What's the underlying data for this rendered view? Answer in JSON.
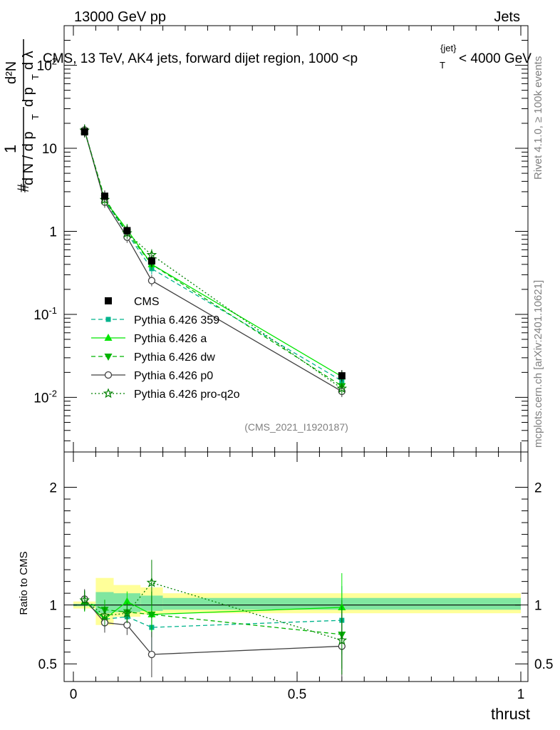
{
  "header": {
    "left": "13000 GeV pp",
    "right": "Jets"
  },
  "side_labels": {
    "rivet": "Rivet 4.1.0, ≥ 100k events",
    "mcplots": "mcplots.cern.ch [arXiv:2401.10621]"
  },
  "analysis_id": "(CMS_2021_I1920187)",
  "colors": {
    "cms": "#000000",
    "p359": "#00b38c",
    "a": "#00e600",
    "dw": "#00b300",
    "p0": "#404040",
    "proq2o": "#008000",
    "band_outer": "#ffff99",
    "band_inner": "#80e6a0"
  },
  "chart_data": [
    {
      "type": "line",
      "panel": "main",
      "title": "CMS, 13 TeV, AK4 jets, forward dijet region, 1000 <p_T^{jet}< 4000 GeV",
      "ylabel": "1/(dN/dpT) d²N/(dpT dλ)",
      "yscale": "log",
      "ylim": [
        0.0022,
        300
      ],
      "xlim": [
        -0.02,
        1.0
      ],
      "y_tick_labels": [
        "10^-2",
        "10^-1",
        "1",
        "10",
        "10^2"
      ],
      "x": [
        0.025,
        0.07,
        0.12,
        0.175,
        0.6
      ],
      "series": [
        {
          "key": "cms",
          "name": "CMS",
          "values": [
            15.8,
            2.65,
            1.02,
            0.44,
            0.0182
          ]
        },
        {
          "key": "p359",
          "name": "Pythia 6.426 359",
          "values": [
            16.5,
            2.35,
            0.94,
            0.355,
            0.0158
          ]
        },
        {
          "key": "a",
          "name": "Pythia 6.426 a",
          "values": [
            16.2,
            2.35,
            1.05,
            0.4,
            0.0178
          ]
        },
        {
          "key": "dw",
          "name": "Pythia 6.426 dw",
          "values": [
            16.3,
            2.5,
            0.97,
            0.4,
            0.0137
          ]
        },
        {
          "key": "p0",
          "name": "Pythia 6.426 p0",
          "values": [
            16.6,
            2.25,
            0.85,
            0.255,
            0.0118
          ]
        },
        {
          "key": "proq2o",
          "name": "Pythia 6.426 pro-q2o",
          "values": [
            16.4,
            2.4,
            0.95,
            0.52,
            0.0128
          ]
        }
      ]
    },
    {
      "type": "line",
      "panel": "ratio",
      "ylabel": "Ratio to CMS",
      "xlabel": "thrust",
      "ylim": [
        0.35,
        2.3
      ],
      "xlim": [
        -0.02,
        1.0
      ],
      "y_tick_labels": [
        "0.5",
        "1",
        "2"
      ],
      "x_tick_labels": [
        "0",
        "0.5",
        "1"
      ],
      "x": [
        0.025,
        0.07,
        0.12,
        0.175,
        0.6
      ],
      "series": [
        {
          "key": "p359",
          "name": "Pythia 6.426 359",
          "values": [
            1.04,
            0.88,
            0.9,
            0.81,
            0.87
          ]
        },
        {
          "key": "a",
          "name": "Pythia 6.426 a",
          "values": [
            1.03,
            0.88,
            1.03,
            0.92,
            0.98
          ]
        },
        {
          "key": "dw",
          "name": "Pythia 6.426 dw",
          "values": [
            1.03,
            0.96,
            0.94,
            0.92,
            0.75
          ]
        },
        {
          "key": "p0",
          "name": "Pythia 6.426 p0",
          "values": [
            1.05,
            0.85,
            0.83,
            0.58,
            0.65
          ]
        },
        {
          "key": "proq2o",
          "name": "Pythia 6.426 pro-q2o",
          "values": [
            1.04,
            0.91,
            0.93,
            1.19,
            0.7
          ]
        }
      ],
      "reference": 1.0
    }
  ]
}
